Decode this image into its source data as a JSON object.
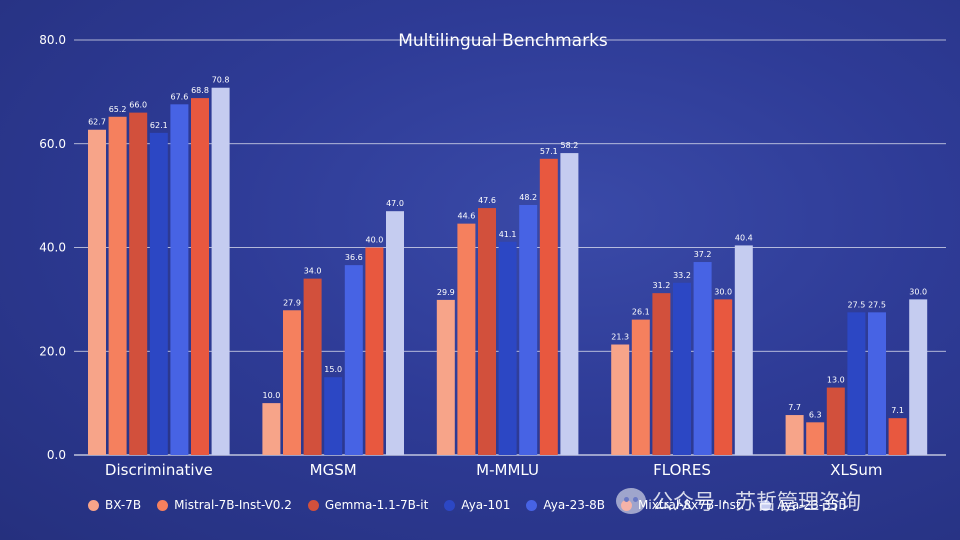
{
  "chart_data": {
    "type": "bar",
    "title": "Multilingual Benchmarks",
    "xlabel": "",
    "ylabel": "",
    "ylim": [
      0,
      80
    ],
    "yticks": [
      "0.0",
      "20.0",
      "40.0",
      "60.0",
      "80.0"
    ],
    "grid": true,
    "legend_position": "bottom",
    "categories": [
      "Discriminative",
      "MGSM",
      "M-MMLU",
      "FLORES",
      "XLSum"
    ],
    "series": [
      {
        "name": "BX-7B",
        "color": "#f7a489",
        "values": [
          62.7,
          10.0,
          29.9,
          21.3,
          7.7
        ],
        "labels": [
          "62.7",
          "10.0",
          "29.9",
          "21.3",
          "7.7"
        ]
      },
      {
        "name": "Mistral-7B-Inst-V0.2",
        "color": "#f5805e",
        "values": [
          65.2,
          27.9,
          44.6,
          26.1,
          6.3
        ],
        "labels": [
          "65.2",
          "27.9",
          "44.6",
          "26.1",
          "6.3"
        ]
      },
      {
        "name": "Gemma-1.1-7B-it",
        "color": "#d2503c",
        "values": [
          66.0,
          34.0,
          47.6,
          31.2,
          13.0
        ],
        "labels": [
          "66.0",
          "34.0",
          "47.6",
          "31.2",
          "13.0"
        ]
      },
      {
        "name": "Aya-101",
        "color": "#2c47c4",
        "values": [
          62.1,
          15.0,
          41.1,
          33.2,
          27.5
        ],
        "labels": [
          "62.1",
          "15.0",
          "41.1",
          "33.2",
          "27.5"
        ]
      },
      {
        "name": "Aya-23-8B",
        "color": "#4763e4",
        "values": [
          67.6,
          36.6,
          48.2,
          37.2,
          27.5
        ],
        "labels": [
          "67.6",
          "36.6",
          "48.2",
          "37.2",
          "27.5"
        ]
      },
      {
        "name": "Mixtral-8x7B-Inst.",
        "color": "#e8583f",
        "values": [
          68.8,
          40.0,
          57.1,
          30.0,
          7.1
        ],
        "labels": [
          "68.8",
          "40.0",
          "57.1",
          "30.0",
          "7.1"
        ]
      },
      {
        "name": "Aya-23-35B",
        "color": "#c5ccf0",
        "values": [
          70.8,
          47.0,
          58.2,
          40.4,
          30.0
        ],
        "labels": [
          "70.8",
          "47.0",
          "58.2",
          "40.4",
          "30.0"
        ]
      }
    ]
  },
  "legend": [
    {
      "label": "BX-7B",
      "color": "#f7a489"
    },
    {
      "label": "Mistral-7B-Inst-V0.2",
      "color": "#f5805e"
    },
    {
      "label": "Gemma-1.1-7B-it",
      "color": "#d2503c"
    },
    {
      "label": "Aya-101",
      "color": "#2c47c4"
    },
    {
      "label": "Aya-23-8B",
      "color": "#4763e4"
    },
    {
      "label": "Mixtral-8x7B-Inst.",
      "color": "#e8583f"
    },
    {
      "label": "Aya-23-35B",
      "color": "#c5ccf0"
    }
  ],
  "watermark": {
    "text": "公众号 · 苏哲管理咨询",
    "icon": "wechat-icon"
  }
}
